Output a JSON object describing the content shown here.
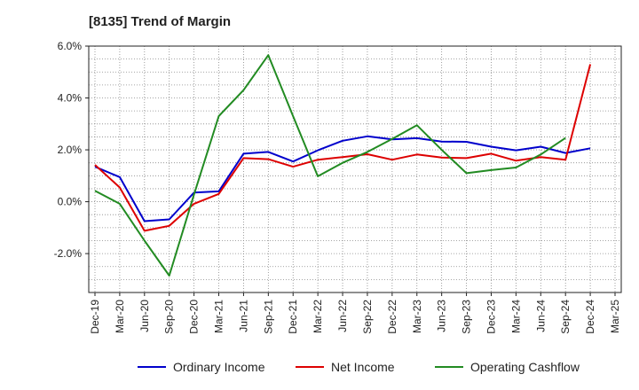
{
  "chart_data": {
    "type": "line",
    "title": "[8135]  Trend of Margin",
    "xlabel": "",
    "ylabel": "",
    "categories": [
      "Dec-19",
      "Mar-20",
      "Jun-20",
      "Sep-20",
      "Dec-20",
      "Mar-21",
      "Jun-21",
      "Sep-21",
      "Dec-21",
      "Mar-22",
      "Jun-22",
      "Sep-22",
      "Dec-22",
      "Mar-23",
      "Jun-23",
      "Sep-23",
      "Dec-23",
      "Mar-24",
      "Jun-24",
      "Sep-24",
      "Dec-24",
      "Mar-25"
    ],
    "y_ticks": [
      "6.0%",
      "4.0%",
      "2.0%",
      "0.0%",
      "-2.0%"
    ],
    "y_tick_values": [
      6,
      4,
      2,
      0,
      -2
    ],
    "ylim": [
      -3.5,
      6.0
    ],
    "grid": true,
    "legend_position": "bottom",
    "series": [
      {
        "name": "Ordinary Income",
        "color": "#0000cc",
        "values": [
          1.35,
          0.95,
          -0.75,
          -0.68,
          0.35,
          0.4,
          1.85,
          1.92,
          1.55,
          1.98,
          2.35,
          2.52,
          2.4,
          2.45,
          2.32,
          2.31,
          2.12,
          1.98,
          2.12,
          1.88,
          2.06,
          null
        ]
      },
      {
        "name": "Net Income",
        "color": "#dd0000",
        "values": [
          1.42,
          0.55,
          -1.12,
          -0.93,
          -0.08,
          0.3,
          1.68,
          1.64,
          1.35,
          1.62,
          1.72,
          1.83,
          1.62,
          1.82,
          1.7,
          1.68,
          1.85,
          1.58,
          1.72,
          1.62,
          5.3,
          null
        ]
      },
      {
        "name": "Operating Cashflow",
        "color": "#228B22",
        "values": [
          0.42,
          -0.08,
          -1.5,
          -2.85,
          0.28,
          3.3,
          4.3,
          5.65,
          3.3,
          0.98,
          1.5,
          1.92,
          2.42,
          2.95,
          2.0,
          1.1,
          1.22,
          1.32,
          1.82,
          2.46,
          null,
          null
        ]
      }
    ]
  }
}
